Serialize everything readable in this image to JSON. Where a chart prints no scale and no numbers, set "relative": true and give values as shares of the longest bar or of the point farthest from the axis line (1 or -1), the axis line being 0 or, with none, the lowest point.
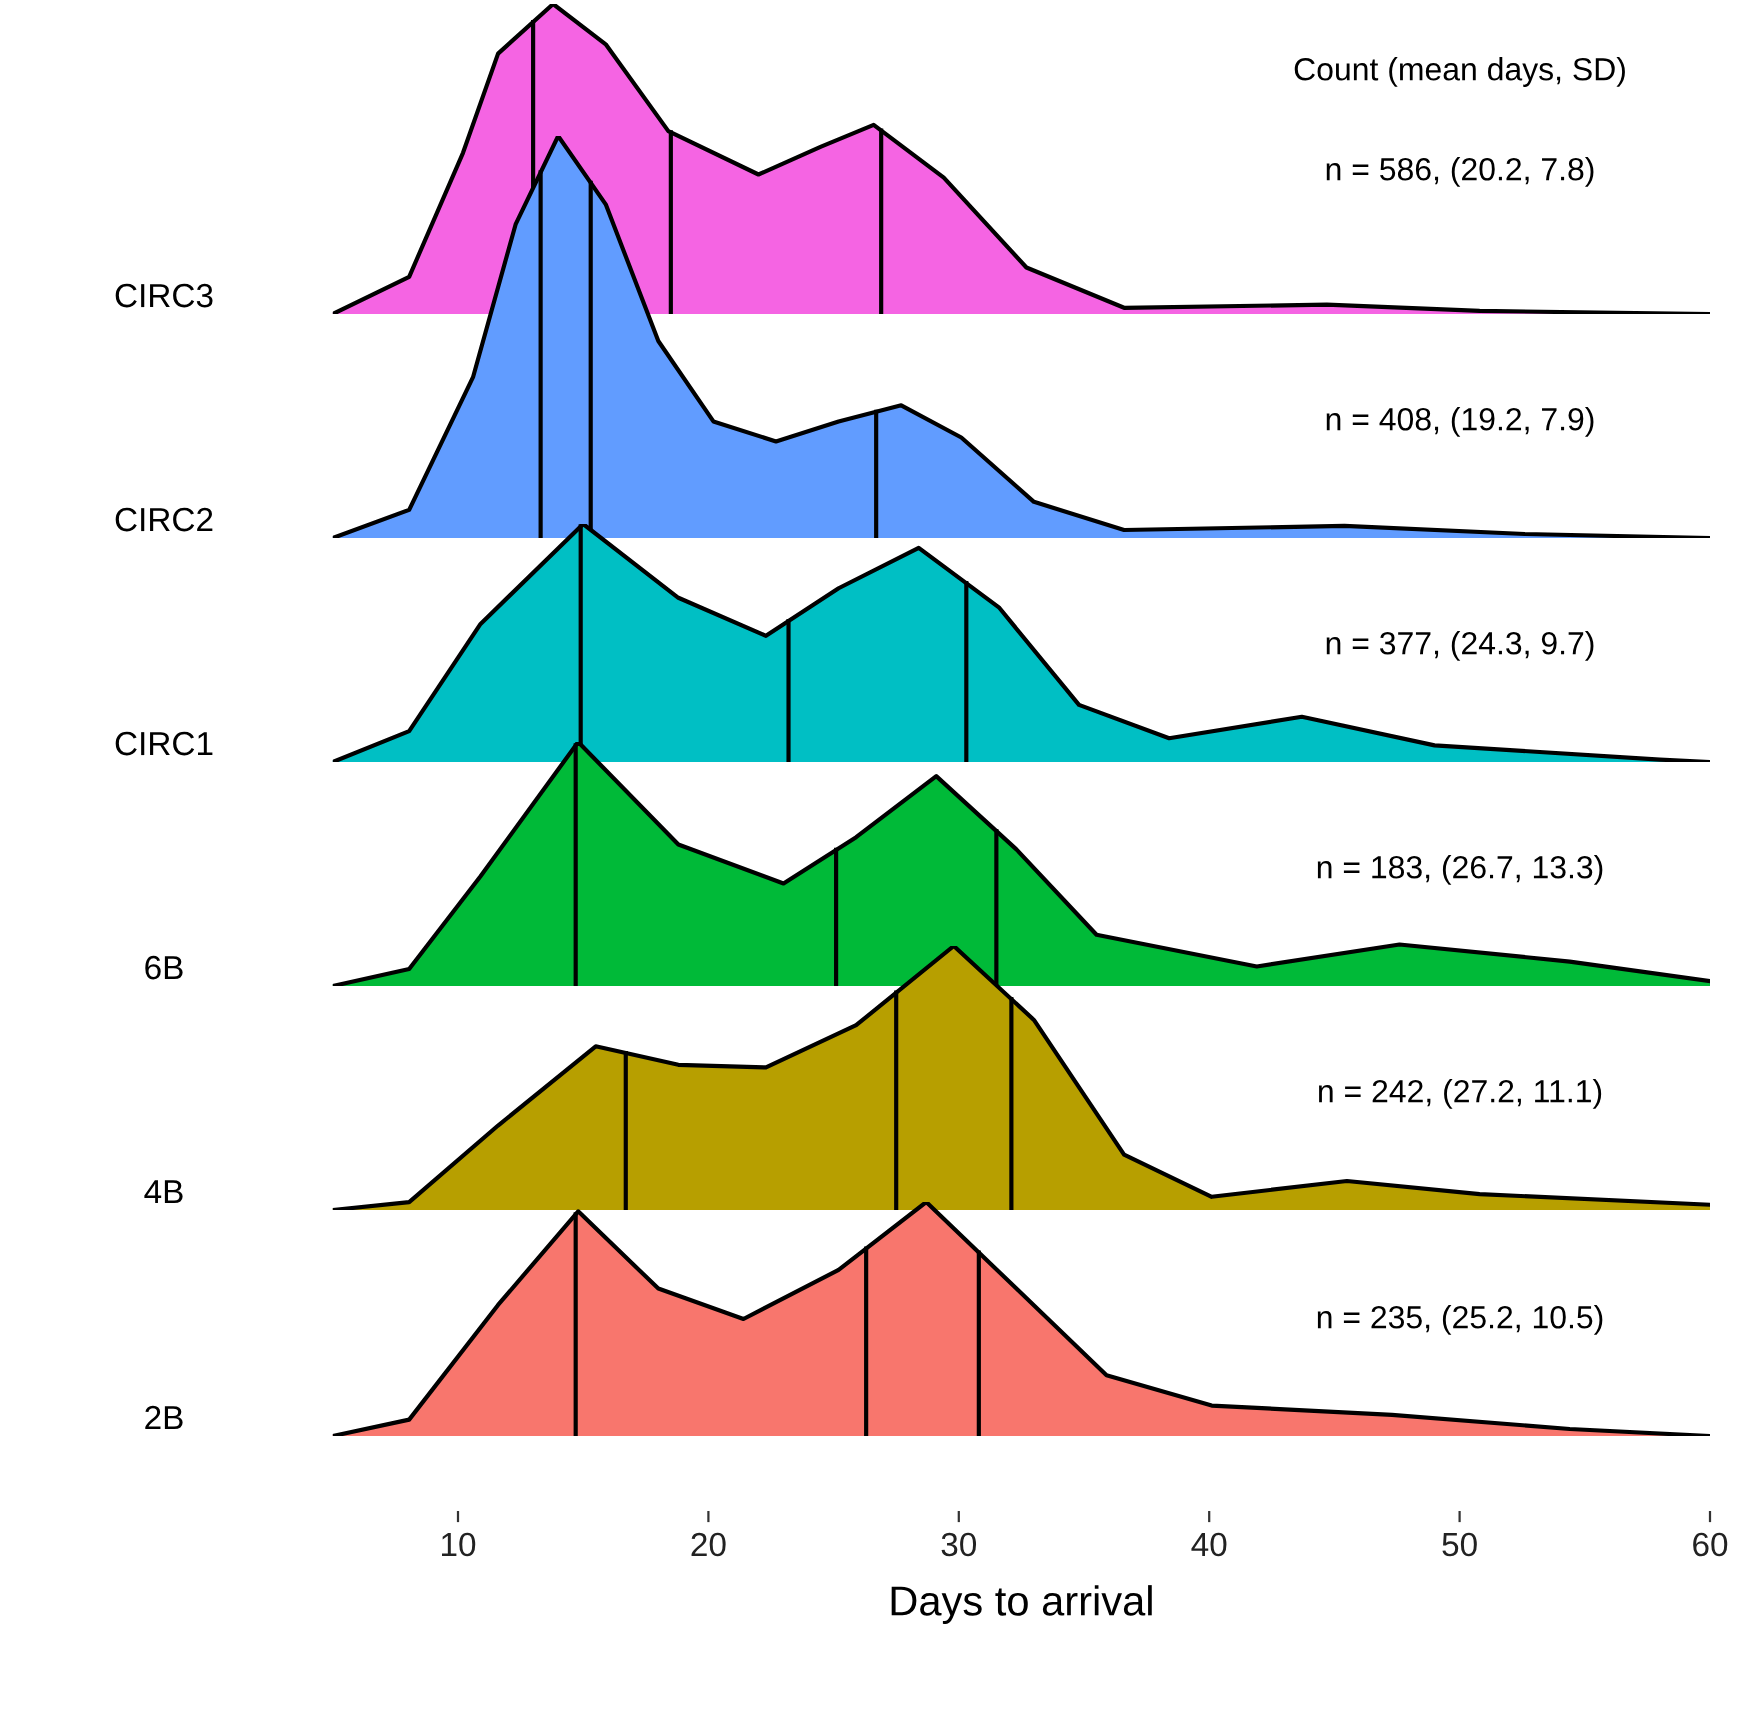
{
  "chart_data": [
    {
      "type": "area",
      "relative": true,
      "ylabel": "CIRC3",
      "color": "#f564e3",
      "xlim": [
        5,
        60
      ],
      "tick_labels": false,
      "annotations": [
        "Count (mean days, SD)",
        "n = 586, (20.2, 7.8)"
      ],
      "x": [
        5,
        8.05,
        10.2,
        11.6,
        13.8,
        15.9,
        18.4,
        22.0,
        24.5,
        26.6,
        29.4,
        32.7,
        36.6,
        44.7,
        50.8,
        60
      ],
      "values": [
        0,
        0.12,
        0.52,
        0.84,
        1.0,
        0.87,
        0.59,
        0.45,
        0.54,
        0.61,
        0.44,
        0.15,
        0.02,
        0.03,
        0.01,
        0
      ],
      "ref_lines": [
        {
          "axis": "x",
          "value": 13.0,
          "color": "#000000"
        },
        {
          "axis": "x",
          "value": 18.5,
          "color": "#000000"
        },
        {
          "axis": "x",
          "value": 26.9,
          "color": "#000000"
        }
      ]
    },
    {
      "type": "area",
      "relative": true,
      "ylabel": "CIRC2",
      "color": "#619cff",
      "xlim": [
        5,
        60
      ],
      "tick_labels": false,
      "annotations": [
        "n = 408, (19.2, 7.9)"
      ],
      "x": [
        5,
        8.05,
        10.6,
        12.3,
        14.0,
        15.9,
        18.0,
        20.2,
        22.7,
        25.2,
        27.7,
        30.1,
        33.0,
        36.6,
        45.4,
        52.6,
        60
      ],
      "values": [
        0,
        0.07,
        0.4,
        0.78,
        1.0,
        0.83,
        0.49,
        0.29,
        0.24,
        0.29,
        0.33,
        0.25,
        0.09,
        0.02,
        0.03,
        0.01,
        0
      ],
      "ref_lines": [
        {
          "axis": "x",
          "value": 13.3,
          "color": "#000000"
        },
        {
          "axis": "x",
          "value": 15.3,
          "color": "#000000"
        },
        {
          "axis": "x",
          "value": 26.7,
          "color": "#000000"
        }
      ]
    },
    {
      "type": "area",
      "relative": true,
      "ylabel": "CIRC1",
      "color": "#00bfc4",
      "xlim": [
        5,
        60
      ],
      "tick_labels": false,
      "annotations": [
        "n = 377, (24.3, 9.7)"
      ],
      "x": [
        5,
        8.05,
        10.9,
        15.0,
        18.8,
        22.3,
        25.2,
        28.4,
        31.6,
        34.8,
        38.4,
        43.7,
        49.0,
        58.0,
        60
      ],
      "values": [
        0,
        0.13,
        0.58,
        1.0,
        0.69,
        0.53,
        0.73,
        0.9,
        0.65,
        0.24,
        0.1,
        0.19,
        0.07,
        0.01,
        0
      ],
      "ref_lines": [
        {
          "axis": "x",
          "value": 14.9,
          "color": "#000000"
        },
        {
          "axis": "x",
          "value": 23.2,
          "color": "#000000"
        },
        {
          "axis": "x",
          "value": 30.3,
          "color": "#000000"
        }
      ]
    },
    {
      "type": "area",
      "relative": true,
      "ylabel": "6B",
      "color": "#00ba38",
      "xlim": [
        5,
        60
      ],
      "tick_labels": false,
      "annotations": [
        "n = 183, (26.7, 13.3)"
      ],
      "x": [
        5,
        8.05,
        10.9,
        14.8,
        18.8,
        23.0,
        25.9,
        29.1,
        32.3,
        35.5,
        41.9,
        47.6,
        54.4,
        60
      ],
      "values": [
        0,
        0.07,
        0.45,
        1.0,
        0.58,
        0.42,
        0.61,
        0.86,
        0.56,
        0.21,
        0.08,
        0.17,
        0.1,
        0.02
      ],
      "ref_lines": [
        {
          "axis": "x",
          "value": 14.7,
          "color": "#000000"
        },
        {
          "axis": "x",
          "value": 25.1,
          "color": "#000000"
        },
        {
          "axis": "x",
          "value": 31.5,
          "color": "#000000"
        }
      ]
    },
    {
      "type": "area",
      "relative": true,
      "ylabel": "4B",
      "color": "#b79f00",
      "xlim": [
        5,
        60
      ],
      "tick_labels": false,
      "annotations": [
        "n = 242, (27.2, 11.1)"
      ],
      "x": [
        5,
        8.05,
        11.6,
        15.5,
        18.8,
        22.3,
        25.9,
        29.8,
        33.0,
        36.6,
        40.1,
        45.5,
        50.8,
        60
      ],
      "values": [
        0,
        0.03,
        0.32,
        0.62,
        0.55,
        0.54,
        0.7,
        1.0,
        0.72,
        0.21,
        0.05,
        0.11,
        0.06,
        0.02
      ],
      "ref_lines": [
        {
          "axis": "x",
          "value": 16.7,
          "color": "#000000"
        },
        {
          "axis": "x",
          "value": 27.5,
          "color": "#000000"
        },
        {
          "axis": "x",
          "value": 32.1,
          "color": "#000000"
        }
      ]
    },
    {
      "type": "area",
      "relative": true,
      "ylabel": "2B",
      "color": "#f8766d",
      "xlim": [
        5,
        60
      ],
      "xticks": [
        10,
        20,
        30,
        40,
        50,
        60
      ],
      "tick_labels": "x",
      "xlabel": "Days to arrival",
      "annotations": [
        "n = 235, (25.2, 10.5)"
      ],
      "x": [
        5,
        8.05,
        11.6,
        14.8,
        18.0,
        21.4,
        25.2,
        28.7,
        32.3,
        35.9,
        40.1,
        47.3,
        54.4,
        60
      ],
      "values": [
        0,
        0.07,
        0.56,
        0.96,
        0.63,
        0.5,
        0.71,
        1.0,
        0.63,
        0.26,
        0.13,
        0.09,
        0.03,
        0
      ],
      "ref_lines": [
        {
          "axis": "x",
          "value": 14.7,
          "color": "#000000"
        },
        {
          "axis": "x",
          "value": 26.3,
          "color": "#000000"
        },
        {
          "axis": "x",
          "value": 30.8,
          "color": "#000000"
        }
      ]
    }
  ]
}
